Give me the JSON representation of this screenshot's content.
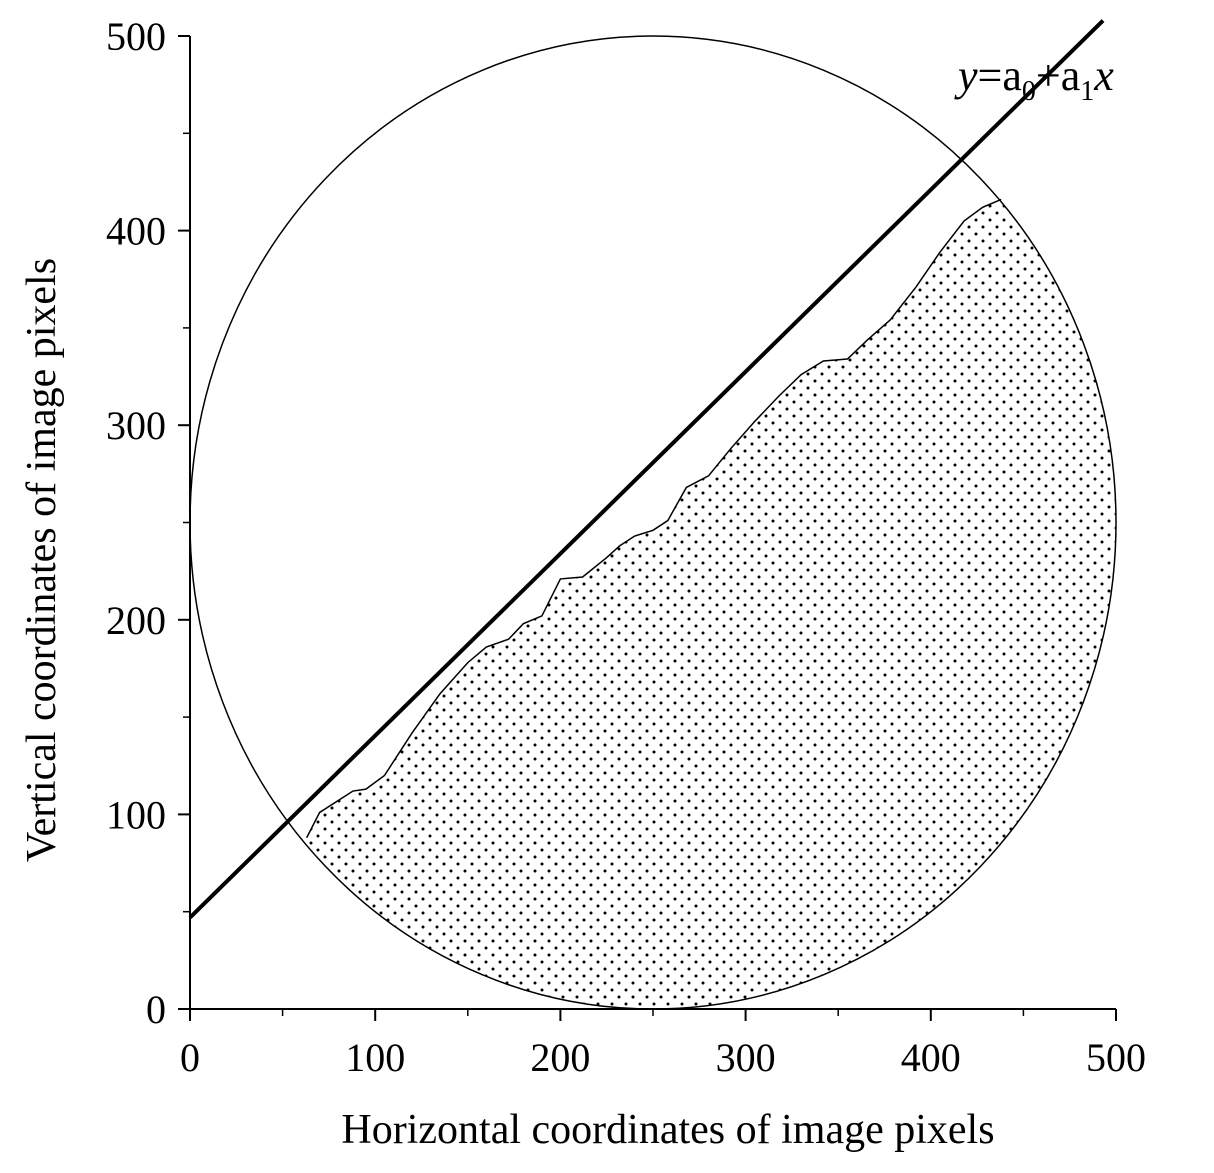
{
  "chart_data": {
    "type": "scatter",
    "xlabel": "Horizontal coordinates of image pixels",
    "ylabel": "Vertical coordinates of image pixels",
    "xlim": [
      0,
      500
    ],
    "ylim": [
      0,
      500
    ],
    "x_ticks": [
      "0",
      "100",
      "200",
      "300",
      "400",
      "500"
    ],
    "y_ticks": [
      "0",
      "100",
      "200",
      "300",
      "400",
      "500"
    ],
    "grid": false,
    "circle": {
      "center": [
        250,
        250
      ],
      "radius": 250
    },
    "fit_line": {
      "equation": {
        "y": "y",
        "eq": "=a",
        "sub0": "0",
        "plus": "+a",
        "sub1": "1",
        "x": "x"
      },
      "intercept": 47,
      "slope": 0.935,
      "x_range": [
        0,
        500
      ]
    },
    "boundary": {
      "x": [
        63,
        70,
        88,
        95,
        105,
        120,
        135,
        150,
        160,
        172,
        180,
        190,
        200,
        212,
        225,
        232,
        240,
        250,
        258,
        268,
        280,
        292,
        305,
        318,
        330,
        342,
        355,
        366,
        378,
        392,
        405,
        418,
        428,
        438
      ],
      "y": [
        88,
        101,
        112,
        113,
        120,
        142,
        162,
        178,
        186,
        190,
        198,
        202,
        221,
        222,
        232,
        238,
        243,
        246,
        251,
        268,
        274,
        288,
        302,
        315,
        326,
        333,
        334,
        344,
        354,
        371,
        389,
        405,
        412,
        416
      ]
    },
    "fill_pattern": "dotted"
  }
}
